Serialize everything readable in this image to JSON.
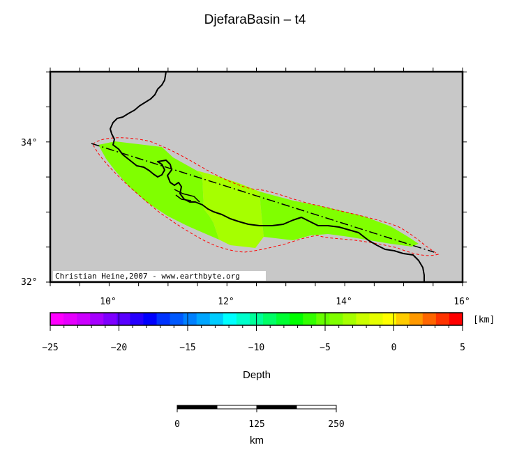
{
  "title": "DjefaraBasin – t4",
  "map": {
    "background_color": "#c8c8c8",
    "lon_labels": [
      "10°",
      "12°",
      "14°",
      "16°"
    ],
    "lat_labels": [
      "34°",
      "32°"
    ],
    "credit": "Christian Heine,2007 - www.earthbyte.org",
    "zones": [
      {
        "name": "western-zone",
        "color": "#80ff00"
      },
      {
        "name": "central-zone",
        "color": "#a6ff00"
      },
      {
        "name": "eastern-zone",
        "color": "#80ff00"
      }
    ],
    "outline_color": "#ff0000",
    "section_line_color": "#000000"
  },
  "colorbar": {
    "unit": "[km]",
    "tick_labels": [
      "−25",
      "−20",
      "−15",
      "−10",
      "−5",
      "0",
      "5"
    ],
    "range": [
      -25,
      5
    ],
    "colors": [
      "#ff00ff",
      "#e600ff",
      "#cc00ff",
      "#a600ff",
      "#7f00ff",
      "#5900ff",
      "#2600ff",
      "#0000ff",
      "#0033ff",
      "#0059ff",
      "#0080ff",
      "#00a6ff",
      "#00ccff",
      "#00ffff",
      "#00ffcc",
      "#00ff99",
      "#00ff66",
      "#00ff33",
      "#00ff00",
      "#33ff00",
      "#66ff00",
      "#80ff00",
      "#a6ff00",
      "#ccff00",
      "#e6ff00",
      "#ffff00",
      "#ffcc00",
      "#ff9900",
      "#ff6600",
      "#ff3300",
      "#ff0000"
    ],
    "label": "Depth"
  },
  "scalebar": {
    "tick_labels": [
      "0",
      "125",
      "250"
    ],
    "unit": "km"
  }
}
